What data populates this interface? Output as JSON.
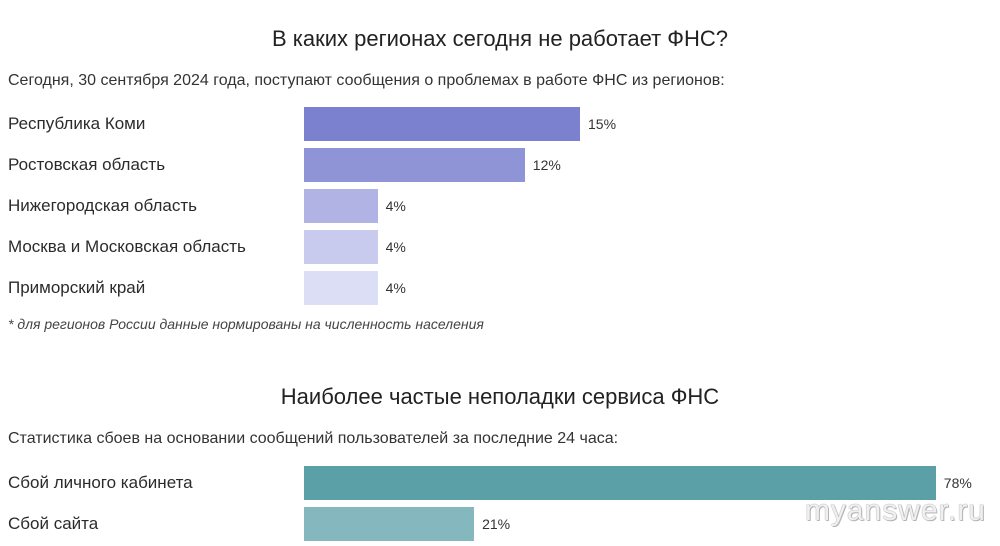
{
  "chart_data": [
    {
      "type": "bar",
      "orientation": "horizontal",
      "title": "В каких регионах сегодня не работает ФНС?",
      "subtitle": "Сегодня, 30 сентября 2024 года, поступают сообщения о проблемах в работе ФНС из регионов:",
      "categories": [
        "Республика Коми",
        "Ростовская область",
        "Нижегородская область",
        "Москва и Московская область",
        "Приморский край"
      ],
      "values": [
        15,
        12,
        4,
        4,
        4
      ],
      "value_labels": [
        "15%",
        "12%",
        "4%",
        "4%",
        "4%"
      ],
      "colors": [
        "#7b80cf",
        "#8f94d6",
        "#b0b3e3",
        "#c8cbee",
        "#dcdef5"
      ],
      "footnote": "* для регионов России данные нормированы на численность населения"
    },
    {
      "type": "bar",
      "orientation": "horizontal",
      "title": "Наиболее частые неполадки сервиса ФНС",
      "subtitle": "Статистика сбоев на основании сообщений пользователей за последние 24 часа:",
      "categories": [
        "Сбой личного кабинета",
        "Сбой сайта"
      ],
      "values": [
        78,
        21
      ],
      "value_labels": [
        "78%",
        "21%"
      ],
      "colors": [
        "#5b9fa7",
        "#84b8be"
      ]
    }
  ],
  "watermark": "myanswer.ru"
}
